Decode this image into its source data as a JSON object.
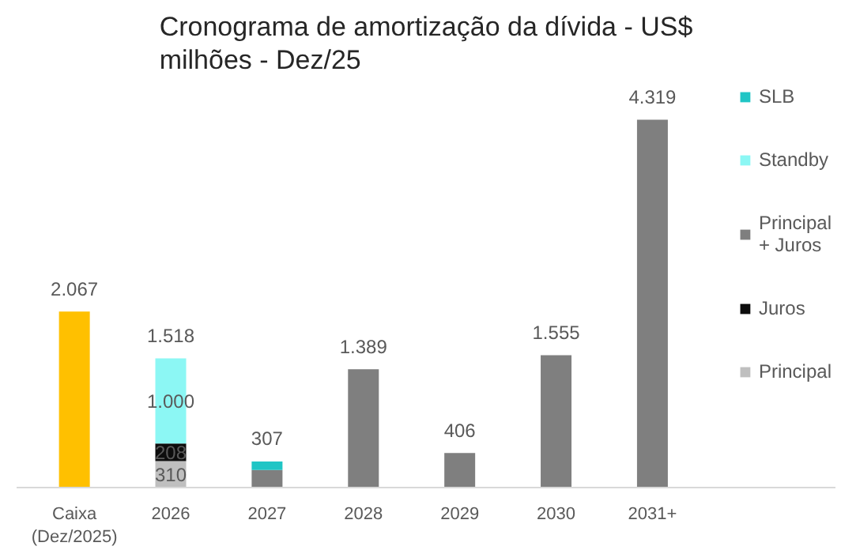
{
  "chart_data": {
    "type": "bar",
    "stacked": true,
    "title": "Cronograma de amortização da dívida - US$ milhões - Dez/25",
    "categories": [
      "Caixa (Dez/2025)",
      "2026",
      "2027",
      "2028",
      "2029",
      "2030",
      "2031+"
    ],
    "tick_labels": "x",
    "grid": false,
    "legend": "right",
    "totals": [
      "2.067",
      "1.518",
      "307",
      "1.389",
      "406",
      "1.555",
      "4.319"
    ],
    "series": [
      {
        "color": "#ffc000",
        "values": [
          2067,
          null,
          null,
          null,
          null,
          null,
          null
        ]
      },
      {
        "name": "Principal",
        "color": "#bfbfbf",
        "values": [
          null,
          310,
          null,
          null,
          null,
          null,
          null
        ],
        "value_labels": [
          null,
          "310",
          null,
          null,
          null,
          null,
          null
        ]
      },
      {
        "name": "Juros",
        "color": "#0d0d0d",
        "values": [
          null,
          208,
          null,
          null,
          null,
          null,
          null
        ],
        "value_labels": [
          null,
          "208",
          null,
          null,
          null,
          null,
          null
        ]
      },
      {
        "name": "Principal + Juros",
        "color": "#7f7f7f",
        "values": [
          null,
          null,
          207,
          1389,
          406,
          1555,
          4319
        ]
      },
      {
        "name": "Standby",
        "color": "#8cf7f4",
        "values": [
          null,
          1000,
          null,
          null,
          null,
          null,
          null
        ],
        "value_labels": [
          null,
          "1.000",
          null,
          null,
          null,
          null,
          null
        ]
      },
      {
        "name": "SLB",
        "color": "#20c5c5",
        "values": [
          null,
          null,
          100,
          null,
          null,
          null,
          null
        ]
      }
    ]
  }
}
